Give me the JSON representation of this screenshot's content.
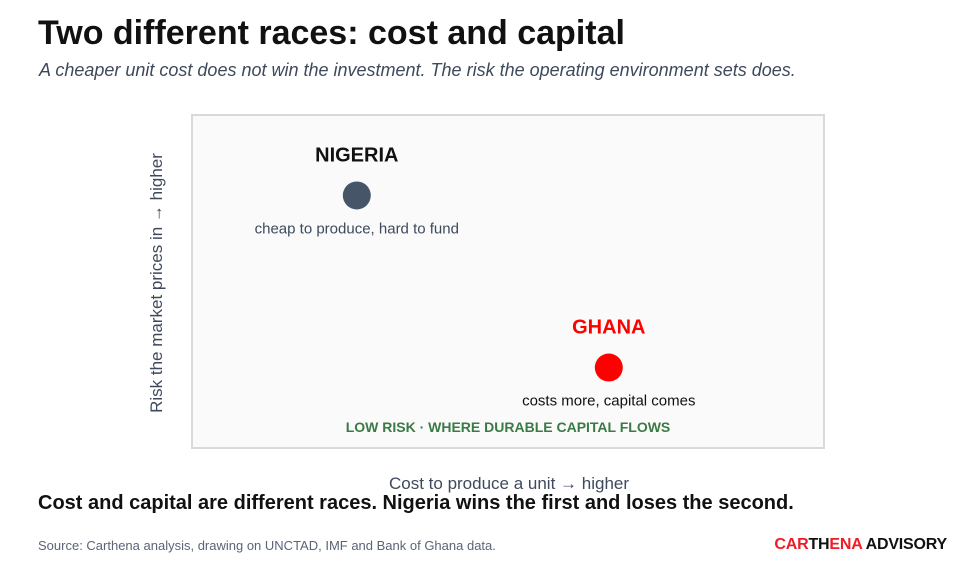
{
  "header": {
    "title": "Two different races: cost and capital",
    "subtitle": "A cheaper unit cost does not win the investment. The risk the operating environment sets does."
  },
  "chart_data": {
    "type": "scatter",
    "xlabel": "Cost to produce a unit  →  higher",
    "ylabel": "Risk the market prices in  →  higher",
    "xlim": [
      0,
      1
    ],
    "ylim": [
      0,
      1
    ],
    "grid": false,
    "points": [
      {
        "name": "NIGERIA",
        "note": "cheap to produce, hard to fund",
        "x": 0.26,
        "y": 0.76,
        "color": "#475569"
      },
      {
        "name": "GHANA",
        "note": "costs more, capital comes",
        "x": 0.66,
        "y": 0.24,
        "color": "#ff0000"
      }
    ],
    "zone_label": "LOW RISK  ·  WHERE DURABLE CAPITAL FLOWS",
    "zone_color": "#3a7a45"
  },
  "takeaway": "Cost and capital are different races. Nigeria wins the first and loses the second.",
  "source": "Source: Carthena analysis, drawing on UNCTAD, IMF and Bank of Ghana data.",
  "brand": {
    "parts": [
      {
        "text": "CAR",
        "color": "#ee1c25"
      },
      {
        "text": "TH",
        "color": "#111111"
      },
      {
        "text": "ENA",
        "color": "#ee1c25"
      },
      {
        "text": " ADVISORY",
        "color": "#111111"
      }
    ]
  }
}
